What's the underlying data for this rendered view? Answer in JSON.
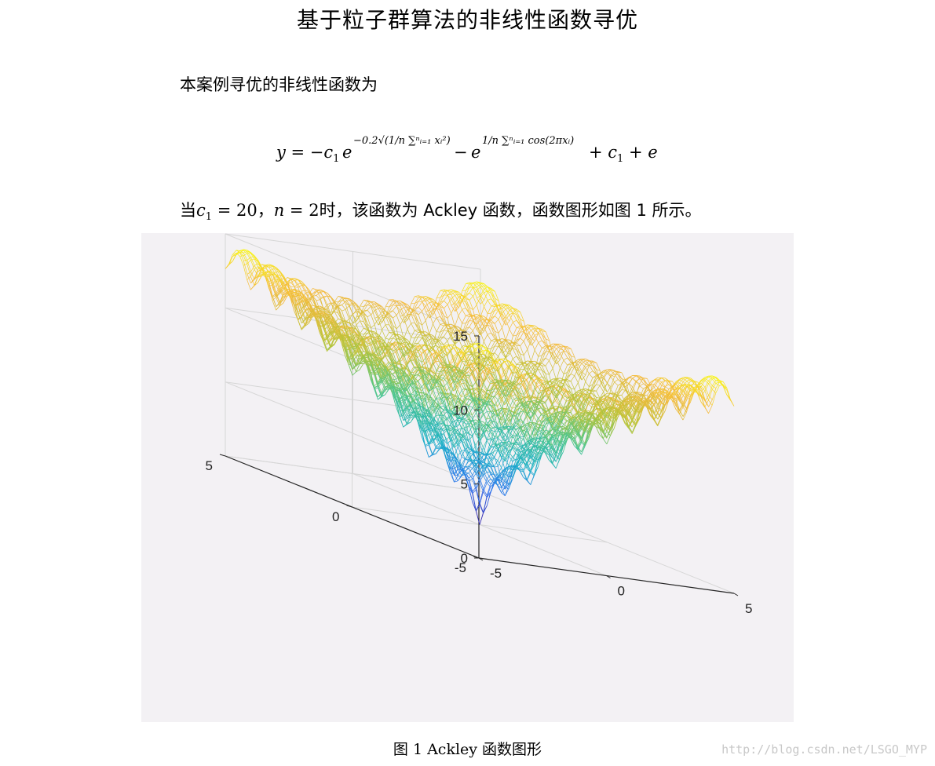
{
  "document": {
    "title": "基于粒子群算法的非线性函数寻优",
    "intro": "本案例寻优的非线性函数为",
    "formula": {
      "lhs": "y = −c",
      "lhs_sub": "1",
      "e1": "e",
      "exp1": "−0.2√(1/n ∑ⁿᵢ₌₁ xᵢ²)",
      "minus": "−",
      "e2": "e",
      "exp2": "1/n ∑ⁿᵢ₌₁ cos(2πxᵢ)",
      "tail": "+ c",
      "tail_sub": "1",
      "tail_end": "+ e"
    },
    "condition": {
      "prefix": "当",
      "c": "c",
      "c_sub": "1",
      "c_eq": " = 20，",
      "n": "n",
      "n_eq": " = 2",
      "suffix": "时，该函数为 Ackley 函数，函数图形如图 1 所示。"
    },
    "caption": "图 1 Ackley 函数图形",
    "watermark": "http://blog.csdn.net/LSGO_MYP"
  },
  "chart_data": {
    "type": "surface-mesh",
    "function": "Ackley",
    "c1": 20,
    "n": 2,
    "x_range": [
      -5,
      5
    ],
    "y_range": [
      -5,
      5
    ],
    "zlim": [
      0,
      15
    ],
    "z_ticks": [
      "0",
      "5",
      "10",
      "15"
    ],
    "x_ticks": [
      "-5",
      "0",
      "5"
    ],
    "y_ticks": [
      "-5",
      "0",
      "5"
    ],
    "grid": true,
    "colormap": [
      "#3e26a8",
      "#2c6ff0",
      "#1bb0c8",
      "#4cc68d",
      "#b8c53a",
      "#f4ba3e",
      "#f9fb0e"
    ]
  }
}
